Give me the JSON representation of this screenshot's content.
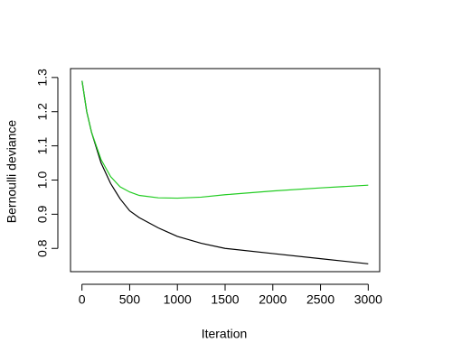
{
  "chart_data": {
    "type": "line",
    "x_label": "Iteration",
    "y_label": "Bernoulli deviance",
    "x": [
      1,
      50,
      100,
      200,
      300,
      400,
      500,
      600,
      800,
      1000,
      1250,
      1500,
      2000,
      2500,
      3000
    ],
    "series": [
      {
        "color": "#000000",
        "values": [
          1.29,
          1.2,
          1.14,
          1.05,
          0.99,
          0.945,
          0.91,
          0.89,
          0.86,
          0.835,
          0.815,
          0.8,
          0.785,
          0.77,
          0.755
        ]
      },
      {
        "color": "#22cc22",
        "values": [
          1.29,
          1.2,
          1.14,
          1.06,
          1.01,
          0.98,
          0.965,
          0.955,
          0.948,
          0.947,
          0.95,
          0.957,
          0.968,
          0.977,
          0.985
        ]
      }
    ],
    "xlim": [
      -120,
      3120
    ],
    "ylim": [
      0.732,
      1.326
    ],
    "xticks": [
      0,
      500,
      1000,
      1500,
      2000,
      2500,
      3000
    ],
    "yticks": [
      0.8,
      0.9,
      {
        "value": 1,
        "label": "1.0"
      },
      1.1,
      1.2,
      1.3
    ]
  }
}
